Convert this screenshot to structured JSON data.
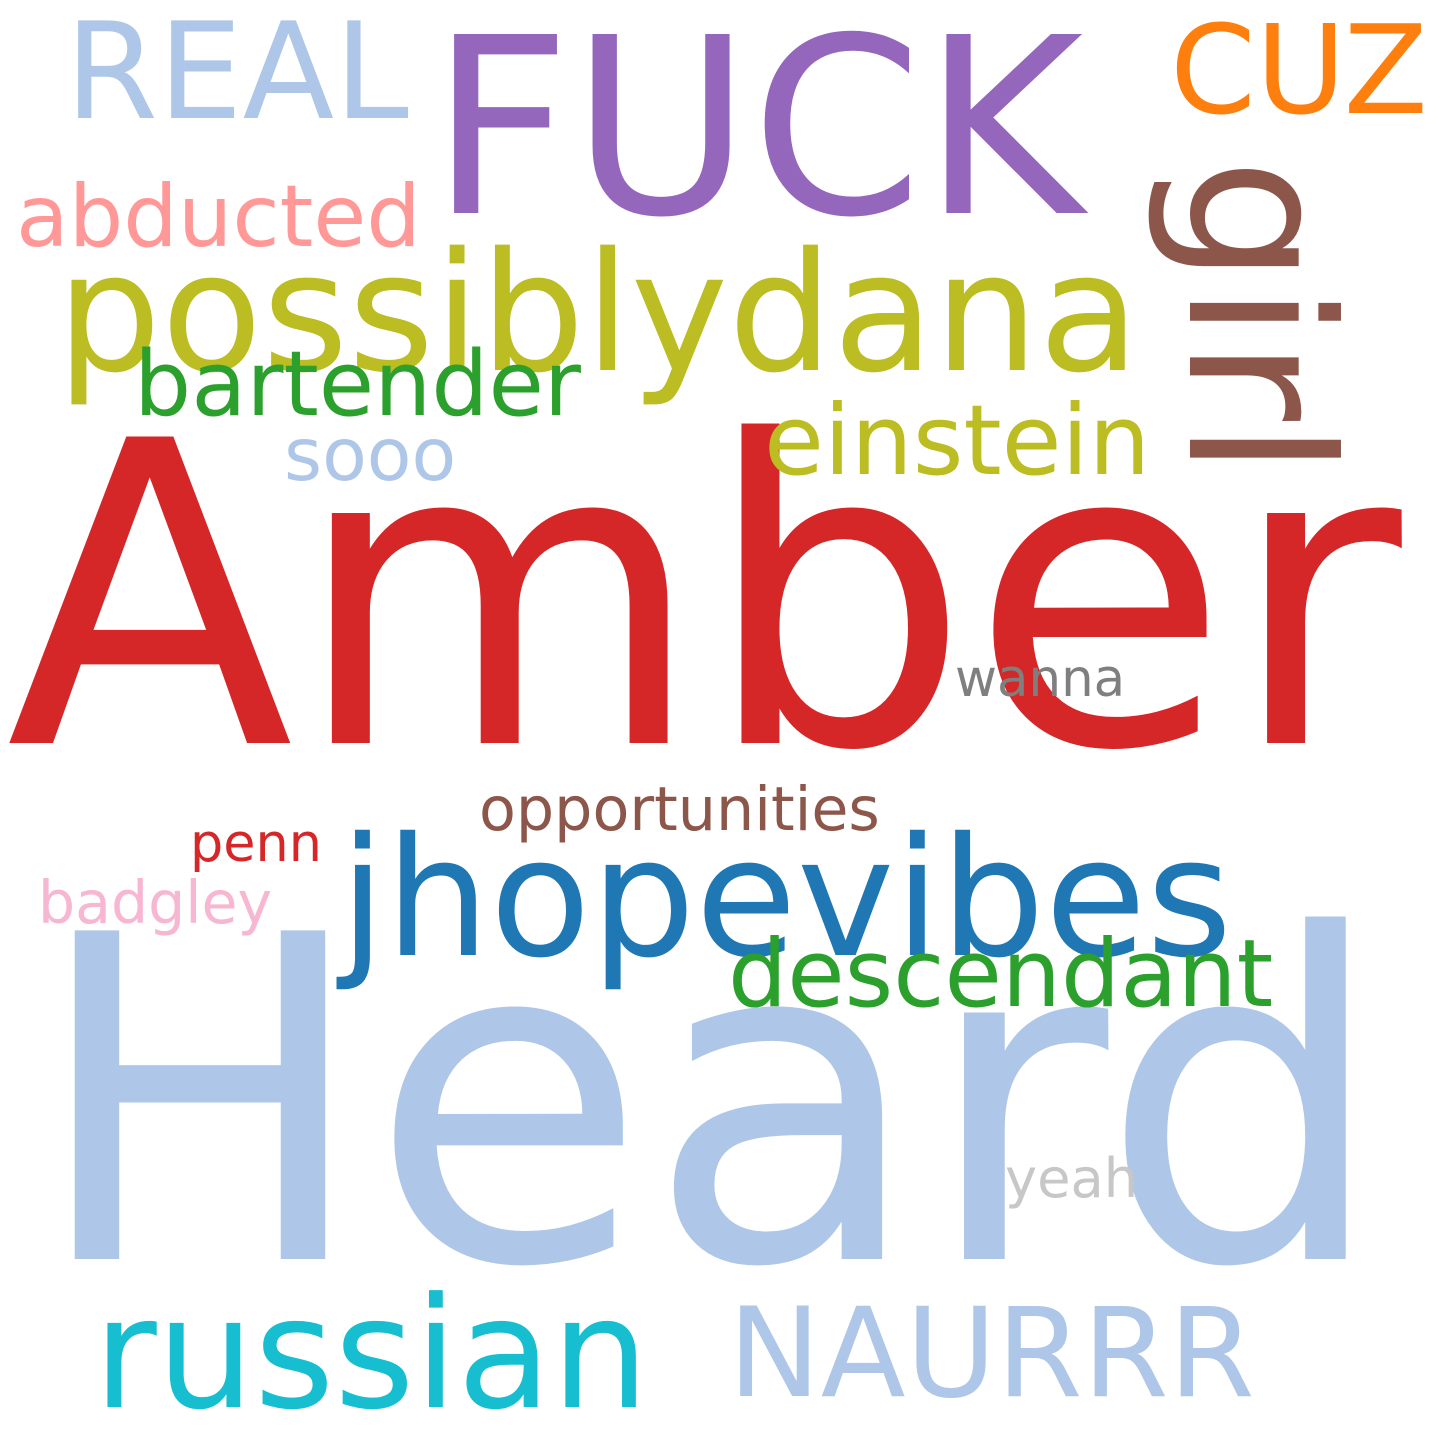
{
  "words": [
    {
      "id": "word-amber",
      "text": "Amber",
      "color": "#d62728"
    },
    {
      "id": "word-heard",
      "text": "Heard",
      "color": "#aec7e8"
    },
    {
      "id": "word-fuck",
      "text": "FUCK",
      "color": "#9467bd"
    },
    {
      "id": "word-real",
      "text": "REAL",
      "color": "#aec7e8"
    },
    {
      "id": "word-cuz",
      "text": "CUZ",
      "color": "#ff7f0e"
    },
    {
      "id": "word-possiblydana",
      "text": "possiblydana",
      "color": "#bcbd22"
    },
    {
      "id": "word-girl",
      "text": "girl",
      "color": "#8c564b"
    },
    {
      "id": "word-abducted",
      "text": "abducted",
      "color": "#ff9896"
    },
    {
      "id": "word-bartender",
      "text": "bartender",
      "color": "#2ca02c"
    },
    {
      "id": "word-sooo",
      "text": "sooo",
      "color": "#aec7e8"
    },
    {
      "id": "word-einstein",
      "text": "einstein",
      "color": "#bcbd22"
    },
    {
      "id": "word-wanna",
      "text": "wanna",
      "color": "#7f7f7f"
    },
    {
      "id": "word-opportunities",
      "text": "opportunities",
      "color": "#8c564b"
    },
    {
      "id": "word-penn",
      "text": "penn",
      "color": "#d62728"
    },
    {
      "id": "word-jhopevibes",
      "text": "jhopevibes",
      "color": "#1f77b4"
    },
    {
      "id": "word-badgley",
      "text": "badgley",
      "color": "#f7b6d2"
    },
    {
      "id": "word-descendant",
      "text": "descendant",
      "color": "#2ca02c"
    },
    {
      "id": "word-yeah",
      "text": "yeah",
      "color": "#c7c7c7"
    },
    {
      "id": "word-russian",
      "text": "russian",
      "color": "#17becf"
    },
    {
      "id": "word-naurrr",
      "text": "NAURRR",
      "color": "#aec7e8"
    }
  ]
}
